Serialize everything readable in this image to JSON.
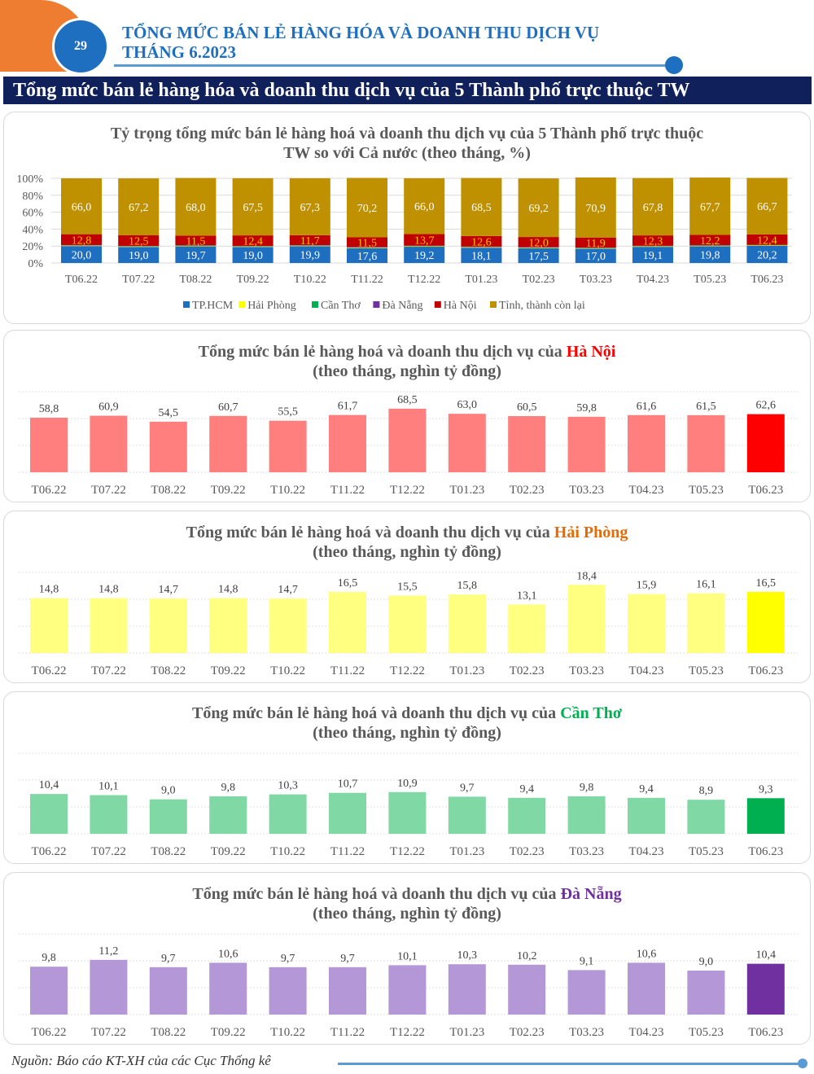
{
  "header": {
    "page_number": "29",
    "title_line1": "TỔNG MỨC BÁN LẺ HÀNG HÓA VÀ DOANH THU DỊCH VỤ",
    "title_line2": "THÁNG 6.2023"
  },
  "banner": "Tổng mức bán lẻ hàng hóa và doanh thu dịch vụ của 5 Thành phố trực thuộc TW",
  "footer": "Nguồn: Báo cáo KT-XH của các Cục Thống kê",
  "chart_data": [
    {
      "type": "bar",
      "stacked": true,
      "title_line1": "Tỷ trọng tổng mức bán lẻ hàng hoá và doanh thu dịch vụ của 5 Thành phố trực thuộc",
      "title_line2": "TW so với Cả nước (theo tháng, %)",
      "categories": [
        "T06.22",
        "T07.22",
        "T08.22",
        "T09.22",
        "T10.22",
        "T11.22",
        "T12.22",
        "T01.23",
        "T02.23",
        "T03.23",
        "T04.23",
        "T05.23",
        "T06.23"
      ],
      "yticks": [
        "0%",
        "20%",
        "40%",
        "60%",
        "80%",
        "100%"
      ],
      "ylim": [
        0,
        100
      ],
      "legend_position": "bottom",
      "series": [
        {
          "name": "TP.HCM",
          "color": "#1f6fc1",
          "label_color": "#ffffff",
          "labels": [
            "20,0",
            "19,0",
            "19,7",
            "19,0",
            "19,9",
            "17,6",
            "19,2",
            "18,1",
            "17,5",
            "17,0",
            "19,1",
            "19,8",
            "20,2"
          ],
          "values": [
            20.0,
            19.0,
            19.7,
            19.0,
            19.9,
            17.6,
            19.2,
            18.1,
            17.5,
            17.0,
            19.1,
            19.8,
            20.2
          ]
        },
        {
          "name": "Hải Phòng",
          "color": "#ffff00",
          "values": [
            0.5,
            0.5,
            0.5,
            0.5,
            0.5,
            0.5,
            0.5,
            0.5,
            0.5,
            0.5,
            0.5,
            0.5,
            0.5
          ]
        },
        {
          "name": "Cần Thơ",
          "color": "#00b050",
          "values": [
            0.4,
            0.4,
            0.4,
            0.4,
            0.4,
            0.4,
            0.4,
            0.4,
            0.4,
            0.4,
            0.4,
            0.4,
            0.4
          ]
        },
        {
          "name": "Đà Nẵng",
          "color": "#7030a0",
          "values": [
            0.3,
            0.3,
            0.3,
            0.3,
            0.3,
            0.3,
            0.3,
            0.3,
            0.3,
            0.3,
            0.3,
            0.3,
            0.3
          ]
        },
        {
          "name": "Hà Nội",
          "color": "#c00000",
          "label_color": "#ffc000",
          "labels": [
            "12,8",
            "12,5",
            "11,5",
            "12,4",
            "11,7",
            "11,5",
            "13,7",
            "12,6",
            "12,0",
            "11,9",
            "12,3",
            "12,2",
            "12,4"
          ],
          "values": [
            12.8,
            12.5,
            11.5,
            12.4,
            11.7,
            11.5,
            13.7,
            12.6,
            12.0,
            11.9,
            12.3,
            12.2,
            12.4
          ]
        },
        {
          "name": "Tỉnh, thành còn lại",
          "color": "#bf9000",
          "label_color": "#ffffff",
          "labels": [
            "66,0",
            "67,2",
            "68,0",
            "67,5",
            "67,3",
            "70,2",
            "66,0",
            "68,5",
            "69,2",
            "70,9",
            "67,8",
            "67,7",
            "66,7"
          ],
          "values": [
            66.0,
            67.2,
            68.0,
            67.5,
            67.3,
            70.2,
            66.0,
            68.5,
            69.2,
            70.9,
            67.8,
            67.7,
            66.7
          ]
        }
      ]
    },
    {
      "type": "bar",
      "title_prefix": "Tổng mức bán lẻ hàng hoá và doanh thu dịch vụ của ",
      "city": "Hà Nội",
      "city_color": "#ff0000",
      "subtitle": "(theo tháng, nghìn tỷ đồng)",
      "color": "#ff7f7f",
      "highlight_color": "#ff0000",
      "categories": [
        "T06.22",
        "T07.22",
        "T08.22",
        "T09.22",
        "T10.22",
        "T11.22",
        "T12.22",
        "T01.23",
        "T02.23",
        "T03.23",
        "T04.23",
        "T05.23",
        "T06.23"
      ],
      "labels": [
        "58,8",
        "60,9",
        "54,5",
        "60,7",
        "55,5",
        "61,7",
        "68,5",
        "63,0",
        "60,5",
        "59,8",
        "61,6",
        "61,5",
        "62,6"
      ],
      "values": [
        58.8,
        60.9,
        54.5,
        60.7,
        55.5,
        61.7,
        68.5,
        63.0,
        60.5,
        59.8,
        61.6,
        61.5,
        62.6
      ]
    },
    {
      "type": "bar",
      "title_prefix": "Tổng mức bán lẻ hàng hoá và doanh thu dịch vụ của ",
      "city": "Hải Phòng",
      "city_color": "#e36c09",
      "subtitle": "(theo tháng, nghìn tỷ đồng)",
      "color": "#ffff80",
      "highlight_color": "#ffff00",
      "categories": [
        "T06.22",
        "T07.22",
        "T08.22",
        "T09.22",
        "T10.22",
        "T11.22",
        "T12.22",
        "T01.23",
        "T02.23",
        "T03.23",
        "T04.23",
        "T05.23",
        "T06.23"
      ],
      "labels": [
        "14,8",
        "14,8",
        "14,7",
        "14,8",
        "14,7",
        "16,5",
        "15,5",
        "15,8",
        "13,1",
        "18,4",
        "15,9",
        "16,1",
        "16,5"
      ],
      "values": [
        14.8,
        14.8,
        14.7,
        14.8,
        14.7,
        16.5,
        15.5,
        15.8,
        13.1,
        18.4,
        15.9,
        16.1,
        16.5
      ]
    },
    {
      "type": "bar",
      "title_prefix": "Tổng mức bán lẻ hàng hoá và doanh thu dịch vụ của ",
      "city": "Cần Thơ",
      "city_color": "#00b050",
      "subtitle": "(theo tháng, nghìn tỷ đồng)",
      "color": "#80d8a4",
      "highlight_color": "#00b050",
      "categories": [
        "T06.22",
        "T07.22",
        "T08.22",
        "T09.22",
        "T10.22",
        "T11.22",
        "T12.22",
        "T01.23",
        "T02.23",
        "T03.23",
        "T04.23",
        "T05.23",
        "T06.23"
      ],
      "labels": [
        "10,4",
        "10,1",
        "9,0",
        "9,8",
        "10,3",
        "10,7",
        "10,9",
        "9,7",
        "9,4",
        "9,8",
        "9,4",
        "8,9",
        "9,3"
      ],
      "values": [
        10.4,
        10.1,
        9.0,
        9.8,
        10.3,
        10.7,
        10.9,
        9.7,
        9.4,
        9.8,
        9.4,
        8.9,
        9.3
      ]
    },
    {
      "type": "bar",
      "title_prefix": "Tổng mức bán lẻ hàng hoá và doanh thu dịch vụ của ",
      "city": "Đà Nẵng",
      "city_color": "#7030a0",
      "subtitle": "(theo tháng, nghìn tỷ đồng)",
      "color": "#b497d6",
      "highlight_color": "#7030a0",
      "categories": [
        "T06.22",
        "T07.22",
        "T08.22",
        "T09.22",
        "T10.22",
        "T11.22",
        "T12.22",
        "T01.23",
        "T02.23",
        "T03.23",
        "T04.23",
        "T05.23",
        "T06.23"
      ],
      "labels": [
        "9,8",
        "11,2",
        "9,7",
        "10,6",
        "9,7",
        "9,7",
        "10,1",
        "10,3",
        "10,2",
        "9,1",
        "10,6",
        "9,0",
        "10,4"
      ],
      "values": [
        9.8,
        11.2,
        9.7,
        10.6,
        9.7,
        9.7,
        10.1,
        10.3,
        10.2,
        9.1,
        10.6,
        9.0,
        10.4
      ]
    }
  ]
}
